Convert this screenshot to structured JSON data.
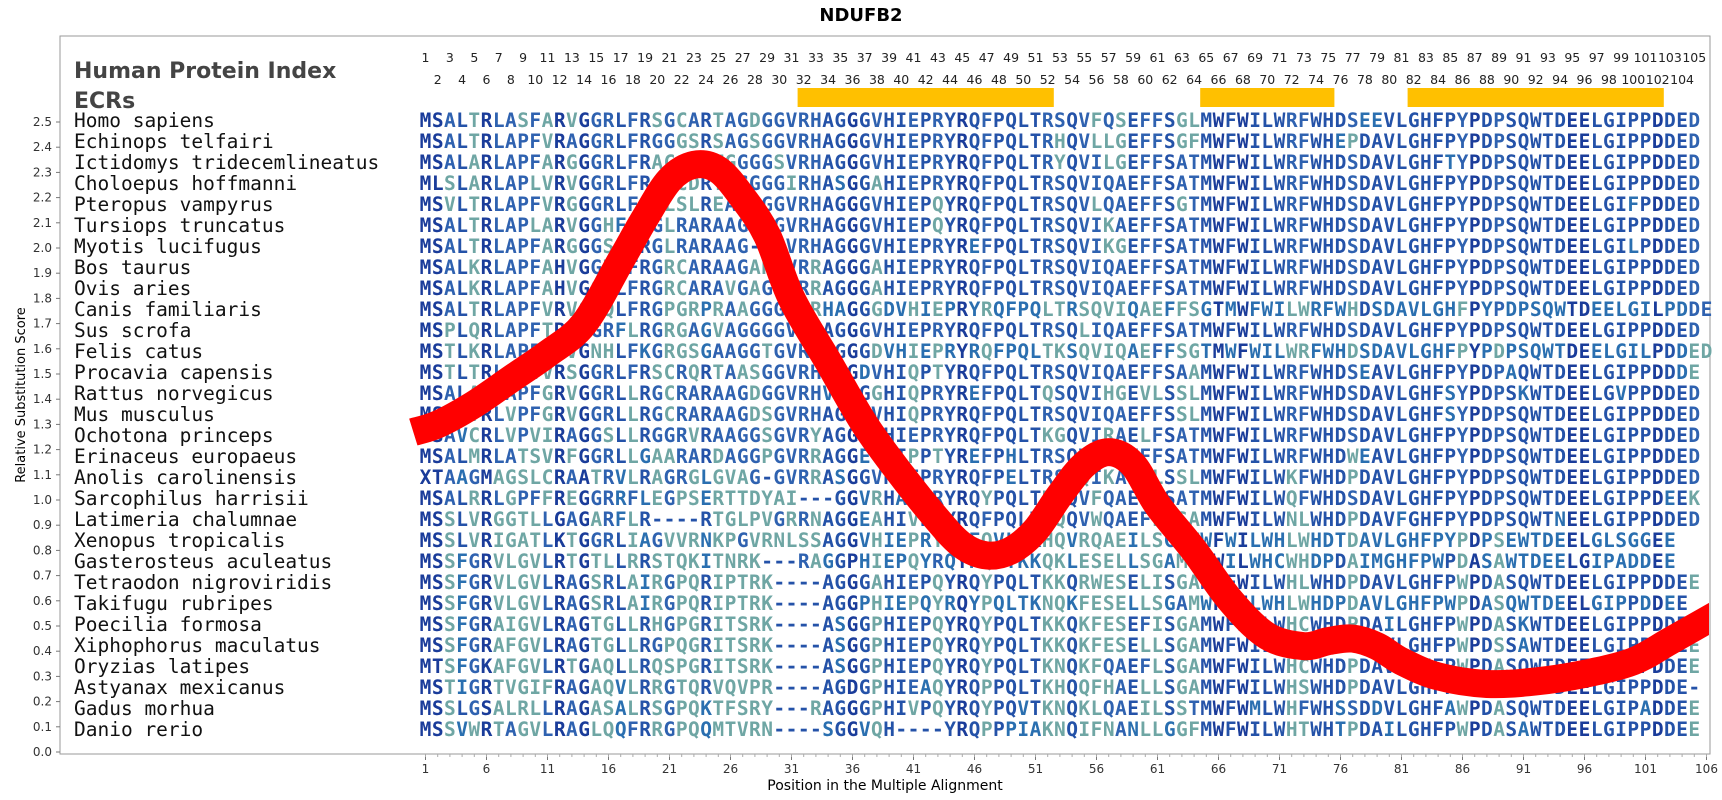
{
  "chart_data": {
    "type": "line",
    "title": "NDUFB2",
    "xlabel": "Position in the Multiple Alignment",
    "ylabel": "Relative Substitution Score",
    "xlim": [
      1,
      106
    ],
    "ylim": [
      0.0,
      2.55
    ],
    "x_ticks": [
      1,
      6,
      11,
      16,
      21,
      26,
      31,
      36,
      41,
      46,
      51,
      56,
      61,
      66,
      71,
      76,
      81,
      86,
      91,
      96,
      101,
      106
    ],
    "y_ticks": [
      "0.0",
      "0.1",
      "0.2",
      "0.3",
      "0.4",
      "0.5",
      "0.6",
      "0.7",
      "0.8",
      "0.9",
      "1.0",
      "1.1",
      "1.2",
      "1.3",
      "1.4",
      "1.5",
      "1.6",
      "1.7",
      "1.8",
      "1.9",
      "2.0",
      "2.1",
      "2.2",
      "2.3",
      "2.4",
      "2.5"
    ],
    "grid": false,
    "human_index_label": "Human Protein Index",
    "ecr_label": "ECRs",
    "index_odd": [
      "1",
      "3",
      "5",
      "7",
      "9",
      "11",
      "13",
      "15",
      "17",
      "19",
      "21",
      "23",
      "25",
      "27",
      "29",
      "31",
      "33",
      "35",
      "37",
      "39",
      "41",
      "43",
      "45",
      "47",
      "49",
      "51",
      "53",
      "55",
      "57",
      "59",
      "61",
      "63",
      "65",
      "67",
      "69",
      "71",
      "73",
      "75",
      "77",
      "79",
      "81",
      "83",
      "85",
      "87",
      "89",
      "91",
      "93",
      "95",
      "97",
      "99",
      "101",
      "103",
      "105"
    ],
    "index_even": [
      "2",
      "4",
      "6",
      "8",
      "10",
      "12",
      "14",
      "16",
      "18",
      "20",
      "22",
      "24",
      "26",
      "28",
      "30",
      "32",
      "34",
      "36",
      "38",
      "40",
      "42",
      "44",
      "46",
      "48",
      "50",
      "52",
      "54",
      "56",
      "58",
      "60",
      "62",
      "64",
      "66",
      "68",
      "70",
      "72",
      "74",
      "76",
      "78",
      "80",
      "82",
      "84",
      "86",
      "88",
      "90",
      "92",
      "94",
      "96",
      "98",
      "100",
      "102",
      "104"
    ],
    "ecr_regions": [
      [
        32,
        52
      ],
      [
        65,
        75
      ],
      [
        82,
        102
      ]
    ],
    "ecr_color": "#ffc000",
    "curve_color": "#ff0000",
    "series": [
      {
        "values": [
          [
            0,
            1.27
          ],
          [
            2,
            1.3
          ],
          [
            5,
            1.38
          ],
          [
            8,
            1.48
          ],
          [
            11,
            1.58
          ],
          [
            14,
            1.7
          ],
          [
            17,
            1.95
          ],
          [
            19,
            2.12
          ],
          [
            21,
            2.27
          ],
          [
            23,
            2.33
          ],
          [
            25,
            2.31
          ],
          [
            27,
            2.2
          ],
          [
            29,
            2.05
          ],
          [
            31,
            1.8
          ],
          [
            34,
            1.55
          ],
          [
            37,
            1.3
          ],
          [
            40,
            1.1
          ],
          [
            43,
            0.92
          ],
          [
            45,
            0.82
          ],
          [
            47,
            0.78
          ],
          [
            49,
            0.8
          ],
          [
            51,
            0.88
          ],
          [
            53,
            1.02
          ],
          [
            55,
            1.14
          ],
          [
            57,
            1.19
          ],
          [
            59,
            1.14
          ],
          [
            61,
            0.98
          ],
          [
            64,
            0.8
          ],
          [
            67,
            0.6
          ],
          [
            70,
            0.46
          ],
          [
            73,
            0.42
          ],
          [
            75,
            0.44
          ],
          [
            77,
            0.45
          ],
          [
            79,
            0.42
          ],
          [
            81,
            0.36
          ],
          [
            84,
            0.3
          ],
          [
            88,
            0.27
          ],
          [
            92,
            0.28
          ],
          [
            96,
            0.31
          ],
          [
            100,
            0.36
          ],
          [
            103,
            0.44
          ],
          [
            107,
            0.55
          ]
        ]
      }
    ]
  },
  "species": [
    "Homo sapiens",
    "Echinops telfairi",
    "Ictidomys tridecemlineatus",
    "Choloepus hoffmanni",
    "Pteropus vampyrus",
    "Tursiops truncatus",
    "Myotis lucifugus",
    "Bos taurus",
    "Ovis aries",
    "Canis familiaris",
    "Sus scrofa",
    "Felis catus",
    "Procavia capensis",
    "Rattus norvegicus",
    "Mus musculus",
    "Ochotona princeps",
    "Erinaceus europaeus",
    "Anolis carolinensis",
    "Sarcophilus harrisii",
    "Latimeria chalumnae",
    "Xenopus tropicalis",
    "Gasterosteus aculeatus",
    "Tetraodon nigroviridis",
    "Takifugu rubripes",
    "Poecilia formosa",
    "Xiphophorus maculatus",
    "Oryzias latipes",
    "Astyanax mexicanus",
    "Gadus morhua",
    "Danio rerio"
  ],
  "sequences": [
    "MSALTRLASFARVGGRLFRSGCARTAGDGGVRHAGGGVHIEPRYRQFPQLTRSQVFQSEFFSGLMWFWILWRFWHDSEEVLGHFPYPDPSQWTDEELGIPPDDED",
    "MSALTRLAPFVRAGGRLFRGGGSRSAGSGGVRHAGGGVHIEPRYRQFPQLTRHQVLLGEFFSGFMWFWILWRFWHEPDAVLGHFPYPDPSQWTDEELGIPPDDED",
    "MSALARLAPFARGGGRLFRACCARTGGGGSVRHAGGGVHIEPRYRQFPQLTRYQVILGEFFSATMWFWILWRFWHDSDAVLGHFTYPDPSQWTDEELGIPPDDED",
    "MLSLARLAPLVRVGGRLFRCGCDRTAGGGGIRHASGGAHIEPRYRQFPQLTRSQVIQAEFFSATMWFWILWRFWHDSDAVLGHFPYPDPSQWTDEELGIPPDDED",
    "MSVLTRLAPFVRGGGRLFGGLSLREAGGGGVRHAGGGVHIEPQYRQFPQLTRSQVLQAEFFSGTMWFWILWRFWHDSDAVLGHFPYPDPSQWTDEELGIFPDDED",
    "MSALTRLAPLARVGGHFFRGLRARAAGGAGVRHAGGGVHIEPQYRQFPQLTRSQVIKAEFFSATMWFWILWRFWHDSDAVLGHFPYPDPSQWTDEELGIPPDDED",
    "MSALTRLAPFARGGGSLFRGLRARAAG-SGVRHAGGGVHIEPRYREFPQLTRSQVIKGEFFSATMWFWILWRFWHDSDAVLGHFPYPDPSQWTDEELGILPDDED",
    "MSALKRLAPFAHVGGHLFRGRCARAAGARGVRRAGGGAHIEPRYRQFPQLTRSQVIQAEFFSATMWFWILWRFWHDSDAVLGHFPYPDPSQWTDEELGIPPDDED",
    "MSALKRLAPFAHVGGHLFRGRCARAVGAGGVRRAGGGAHIEPRYRQFPQLTRSQVIQAEFFSATMWFWILWRFWHDSDAVLGHFPYPDPSQWTDEELGIPPDDED",
    "MSALTRLAPFVRVGGQLFRGPGRPRAAGGGGVRHAGGGDVHIEPRYRQFPQLTRSQVIQAEFFSGTMWFWILWRFWHDSDAVLGHFPYPDPSQWTDEELGILPDDED",
    "MSPLQRLAPFTRVGGRFLRGRGAGVAGGGGVRHAGGGVHIEPRYRQFPQLTRSQLIQAEFFSATMWFWILWRFWHDSDAVLGHFPYPDPSQWTDEELGIPPDDED",
    "MSTLKRLAPFFRVGNHLFKGRGSGAAGGTGVRHAGGGDVHIEPRYRQFPQLTKSQVIQAEFFSGTMWFWILWRFWHDSDAVLGHFPYPDPSQWTDEELGILPDDED",
    "MSTLTRLAPVVRSGGRLFRSCRQRTAASGGVRHAGGDVHIQPTYRQFPQLTRSQVIQAEFFSAAMWFWILWRFWHDSEAVLGHFPYPDPAQWTDEELGIPPDDDE",
    "MSALARLAPFGRVGGRLLRGCRARAAGDGGVRHVGDGGHIQPRYREFPQLTQSQVIHGEVLSSLMWFWILWRFWHDSDAVLGHFSYPDPSKWTDEELGVPPDDED",
    "MSALTRLVPFGRVGGRLLRGCRARAAGDSGVRHAGGGVHIQPRYRQFPQLTRSQVIQAEFFSSLMWFWILWRFWHDSDAVLGHFSYPDPSQWTDEELGIPPDDED",
    "MSAVCRLVPVIRAGGSLLRGGRVRAAGGSGVRYAGGDVHIEPRYRQFPQLTKGQVIRAELFSATMWFWILWRFWHDSDAVLGHFPYPDPSQWTDEELGIPPDDED",
    "MSALMRLATSVRFGGRLLGAARARDAGGPGVRRAGGEVHIPPTYREFPHLTRSQVIQAEFFSATMWFWILWRFWHDWEAVLGHFPYPDPSQWTDEELGIPPDDED",
    "XTAAGMAGSLCRAATRVLRAGRGLGVAG-GVRRASGGVHIEPRYRQFPELTRSQQIKAEVLSSLMWFWILWKFWHDPDAVLGHFPYPDPSQWTDEELGIPPDDED",
    "MSALRRLGPFFREGGRRFLEGPSERTTDYAI---GGVRHAQIRYRQYPQLTKSQVFQAELLSATMWFWILWQFWHDSDAVLGHFPYPDPSQWTDEELGIPPDEEK",
    "MSSLVRGGTLLGAGARFLR----RTGLPVGRRNAGGEAHIVPRYRQFPQLTKQQVWQAEFLSSAMWFWILWNLWHDPDAVFGHFPYPDPSQWTNEELGIPPDDED",
    "MSSLVRIGATLKTGGRLIAGVVRNKPGVRNLSSAGGVHIEPRYRHFQVLSKHQVRQAEILSGFMWFWILWHLWHDTDAVLGHFPYPDPSEWTDEELGLSGGEE",
    "MSSFGRVLGVLRTGTLLRRSTQKITNRK---RAGGPHIEPQYRQYPQLTKKQKLESELLSGAMWFWILWHCWHDPDAIMGHFPWPDASAWTDEELGIPADDEE",
    "MSSFGRVLGVLRAGSRLAIRGPQRIPTRK----AGGGAHIEPQYRQYPQLTKKQRWESELISGAMWFWILWHLWHDPDAVLGHFPWPDASQWTDEELGIPPDDEE",
    "MSSFGRVLGVLRAGSRLAIRGPQRIPTRK----AGGPHIEPQYRQYPQLTKNQKFESELLSGAMWFWILWHLWHDPDAVLGHFPWPDASQWTDEELGIPPDDEE",
    "MSSFGRAIGVLRAGTGLLRHGPGRITSRK----ASGGPHIEPQYRQYPQLTKKQKFESEFISGAMWFWILWHCWHDPDAILGHFPWPDASKWTDEELGIPPDDEE",
    "MSSFGRAFGVLRAGTGLLRGPQGRITSRK----ASGGPHIEPQYRQYPQLTKKQKFESELLSGAMWFWILWHFWHDPDAVLGHFPWPDSSAWTDEELGIPPDDEE",
    "MTSFGKAFGVLRTGAQLLRQSPGRITSRK----ASGGPHIEPQYRQYPQLTKNQKFQAEFLSGAMWFWILWHCWHDPDAVLGHFPWPDASQWTDEELGIPPDDEE",
    "MSTIGRTVGIFRAGAQVLRRGTQRVQVPR----AGDGPHIEAQYRQPPQLTKHQQFHAELLSGAMWFWILWHSWHDPDAVLGHFPWPDASAWTDEELGIPPDDE-",
    "MSSLGSALRLLRAGASALRSGPQKTFSRY---RAGGGPHIVPQYRQYPQVTKNQKLQAEILSSTMWFWMLWHFWHSSDDVLGHFAWPDASQWTDEELGIPADDEE",
    "MSSVWRTAGVLRAGLQQFRRGPQQMTVRN----SGGVQH----YRQPPPIAKNQIFNANLLGGFMWFWILWHTWHTPDAILGHFPWPDASAWTDEELGIPPDDEE"
  ]
}
